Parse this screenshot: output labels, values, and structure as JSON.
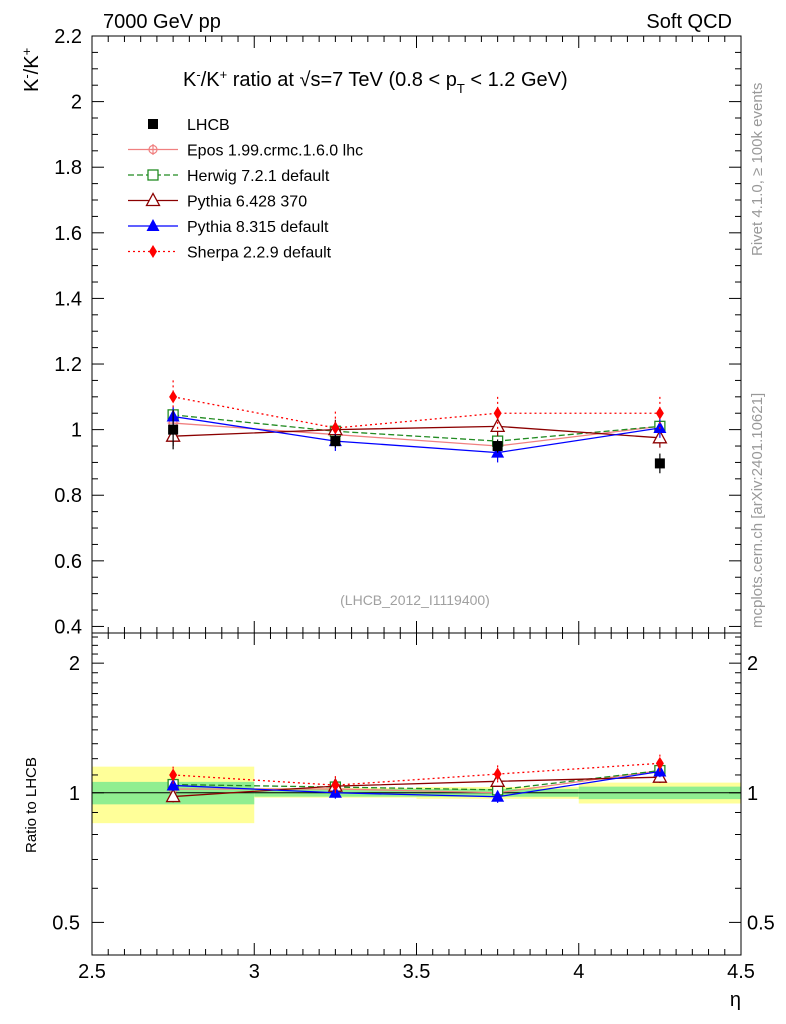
{
  "header": {
    "left": "7000 GeV pp",
    "right": "Soft QCD"
  },
  "side_labels": {
    "rivet": "Rivet 4.1.0, ≥ 100k events",
    "mcplots": "mcplots.cern.ch [arXiv:2401.10621]"
  },
  "chart_data": {
    "type": "line",
    "title": "K⁻/K⁺ ratio at √s=7 TeV (0.8 < p_T < 1.2 GeV)",
    "title_parts": {
      "k": "K",
      "minus": "-",
      "slash": "/K",
      "plus": "+",
      "ratio_at": " ratio at ",
      "sqrt": "√",
      "s_eq": "s=7 TeV (0.8 < p",
      "t_sub": "T",
      "tail": " < 1.2 GeV)"
    },
    "ylabel_parts": {
      "k": "K",
      "minus": "-",
      "slash": "/K",
      "plus": "+"
    },
    "xlabel": "η",
    "ratio_ylabel": "Ratio to LHCB",
    "watermark": "(LHCB_2012_I1119400)",
    "x_range": [
      2.5,
      4.5
    ],
    "y_range": [
      0.38,
      2.2
    ],
    "ratio_range": [
      0.42,
      2.35
    ],
    "x_ticks": [
      "2.5",
      "3",
      "3.5",
      "4",
      "4.5"
    ],
    "y_ticks": [
      "0.4",
      "0.6",
      "0.8",
      "1",
      "1.2",
      "1.4",
      "1.6",
      "1.8",
      "2",
      "2.2"
    ],
    "ratio_ticks": [
      "0.5",
      "1",
      "2"
    ],
    "x": [
      2.75,
      3.25,
      3.75,
      4.25
    ],
    "bin_edges": [
      2.5,
      3.0,
      3.5,
      4.0,
      4.5
    ],
    "data": {
      "name": "LHCB",
      "values": [
        1.0,
        0.965,
        0.95,
        0.897
      ],
      "stat_err": [
        0.06,
        0.02,
        0.02,
        0.03
      ],
      "total_err": [
        0.15,
        0.025,
        0.03,
        0.05
      ]
    },
    "series": [
      {
        "name": "Epos 1.99.crmc.1.6.0 lhc",
        "color": "#f08080",
        "style": "solid",
        "marker": "cross-circle",
        "values": [
          1.02,
          0.985,
          0.95,
          1.01
        ],
        "err": [
          0.02,
          0.02,
          0.02,
          0.02
        ]
      },
      {
        "name": "Herwig 7.2.1 default",
        "color": "#228b22",
        "style": "dashed",
        "marker": "open-square",
        "values": [
          1.045,
          0.995,
          0.965,
          1.01
        ],
        "err": [
          0.02,
          0.02,
          0.02,
          0.02
        ]
      },
      {
        "name": "Pythia 6.428 370",
        "color": "#8b0000",
        "style": "solid",
        "marker": "open-triangle",
        "values": [
          0.98,
          1.0,
          1.01,
          0.975
        ],
        "err": [
          0.03,
          0.03,
          0.03,
          0.03
        ]
      },
      {
        "name": "Pythia 8.315 default",
        "color": "#0000ff",
        "style": "solid",
        "marker": "filled-triangle",
        "values": [
          1.04,
          0.965,
          0.93,
          1.005
        ],
        "err": [
          0.03,
          0.03,
          0.03,
          0.03
        ]
      },
      {
        "name": "Sherpa 2.2.9 default",
        "color": "#ff0000",
        "style": "dotted",
        "marker": "filled-diamond",
        "values": [
          1.1,
          1.005,
          1.05,
          1.05
        ],
        "err": [
          0.05,
          0.05,
          0.05,
          0.05
        ]
      }
    ]
  }
}
